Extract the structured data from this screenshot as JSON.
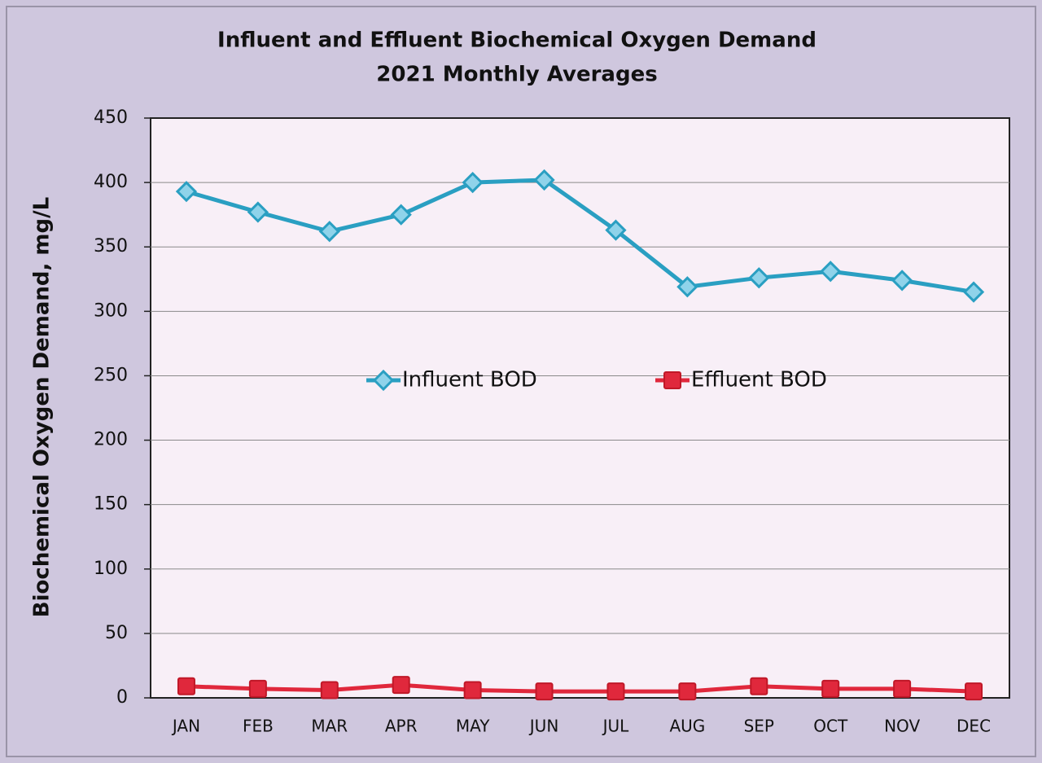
{
  "chart_data": {
    "type": "line",
    "title": "Influent and Effluent Biochemical Oxygen Demand",
    "subtitle": "2021 Monthly Averages",
    "y_label": "Biochemical Oxygen Demand, mg/L",
    "categories": [
      "JAN",
      "FEB",
      "MAR",
      "APR",
      "MAY",
      "JUN",
      "JUL",
      "AUG",
      "SEP",
      "OCT",
      "NOV",
      "DEC"
    ],
    "series": [
      {
        "name": "Influent BOD",
        "color": "#2a9fc2",
        "marker": "diamond",
        "values": [
          393,
          377,
          362,
          375,
          400,
          402,
          363,
          319,
          326,
          331,
          324,
          315
        ]
      },
      {
        "name": "Effluent BOD",
        "color": "#e0283c",
        "marker": "square",
        "values": [
          9,
          7,
          6,
          10,
          6,
          5,
          5,
          5,
          9,
          7,
          7,
          5
        ]
      }
    ],
    "ylim": [
      0,
      450
    ],
    "yticks": [
      0,
      50,
      100,
      150,
      200,
      250,
      300,
      350,
      400,
      450
    ],
    "grid": true,
    "legend": "center"
  }
}
